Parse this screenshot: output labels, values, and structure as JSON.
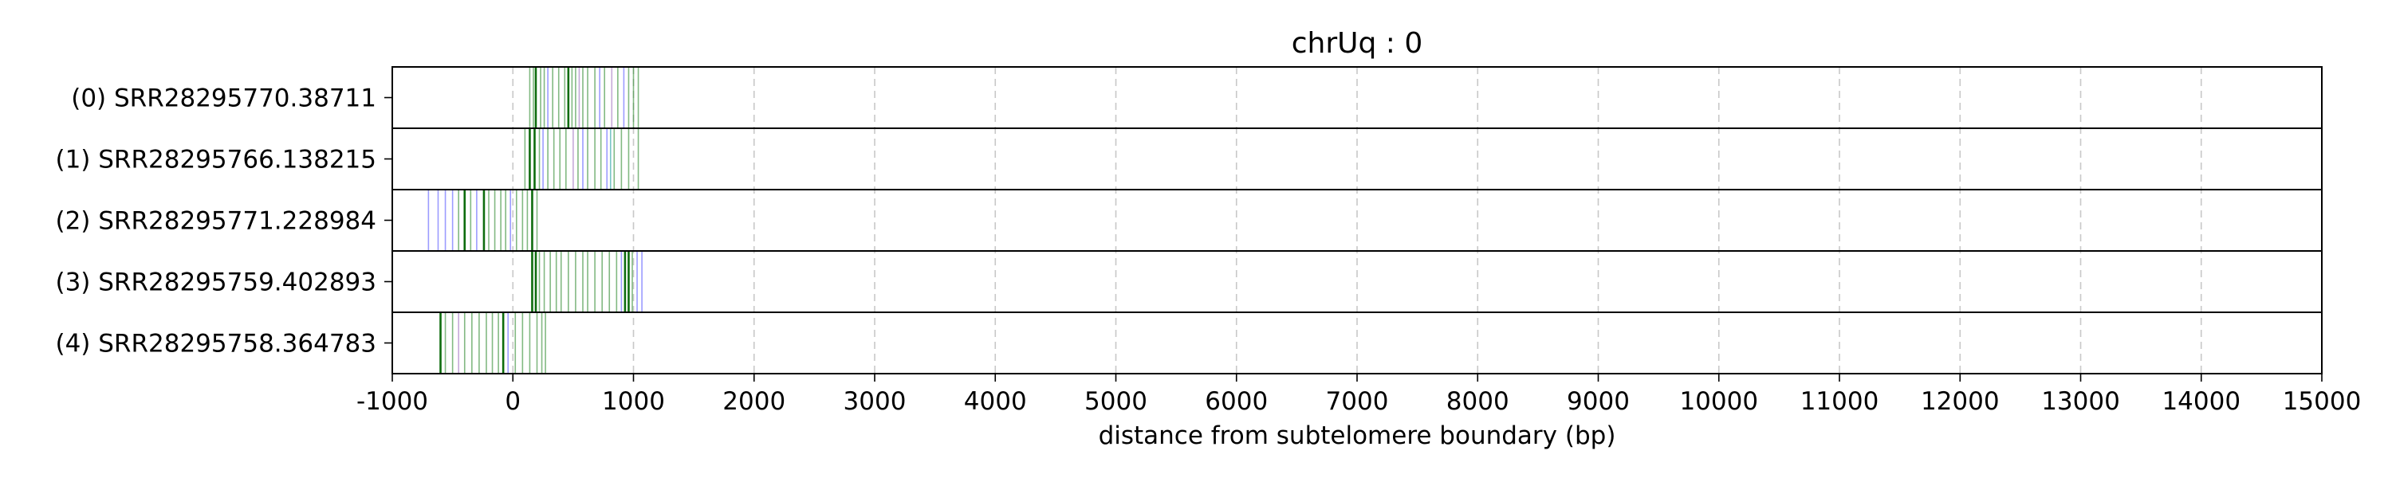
{
  "chart_data": {
    "type": "event-track",
    "title": "chrUq : 0",
    "xlabel": "distance from subtelomere boundary (bp)",
    "xlim": [
      -1000,
      15000
    ],
    "x_ticks": [
      -1000,
      0,
      1000,
      2000,
      3000,
      4000,
      5000,
      6000,
      7000,
      8000,
      9000,
      10000,
      11000,
      12000,
      13000,
      14000,
      15000
    ],
    "x_tick_labels": [
      "-1000",
      "0",
      "1000",
      "2000",
      "3000",
      "4000",
      "5000",
      "6000",
      "7000",
      "8000",
      "9000",
      "10000",
      "11000",
      "12000",
      "13000",
      "14000",
      "15000"
    ],
    "grid": "vertical dashed",
    "colors": {
      "green": "#2e8b2e",
      "dark_green": "#006400",
      "blue": "#5a5aff",
      "purple": "#a070c0"
    },
    "rows": [
      {
        "label": "(0) SRR28295770.38711",
        "events": [
          {
            "x": 140,
            "c": "green"
          },
          {
            "x": 170,
            "c": "green"
          },
          {
            "x": 190,
            "c": "dark_green"
          },
          {
            "x": 230,
            "c": "green"
          },
          {
            "x": 260,
            "c": "green"
          },
          {
            "x": 290,
            "c": "blue"
          },
          {
            "x": 330,
            "c": "green"
          },
          {
            "x": 380,
            "c": "green"
          },
          {
            "x": 430,
            "c": "green"
          },
          {
            "x": 460,
            "c": "dark_green"
          },
          {
            "x": 490,
            "c": "green"
          },
          {
            "x": 520,
            "c": "green"
          },
          {
            "x": 550,
            "c": "purple"
          },
          {
            "x": 580,
            "c": "green"
          },
          {
            "x": 620,
            "c": "green"
          },
          {
            "x": 680,
            "c": "green"
          },
          {
            "x": 720,
            "c": "blue"
          },
          {
            "x": 760,
            "c": "green"
          },
          {
            "x": 820,
            "c": "purple"
          },
          {
            "x": 870,
            "c": "green"
          },
          {
            "x": 920,
            "c": "blue"
          },
          {
            "x": 960,
            "c": "green"
          },
          {
            "x": 1000,
            "c": "green"
          },
          {
            "x": 1040,
            "c": "green"
          }
        ]
      },
      {
        "label": "(1) SRR28295766.138215",
        "events": [
          {
            "x": 100,
            "c": "green"
          },
          {
            "x": 140,
            "c": "dark_green"
          },
          {
            "x": 180,
            "c": "dark_green"
          },
          {
            "x": 220,
            "c": "green"
          },
          {
            "x": 250,
            "c": "blue"
          },
          {
            "x": 290,
            "c": "green"
          },
          {
            "x": 340,
            "c": "green"
          },
          {
            "x": 390,
            "c": "green"
          },
          {
            "x": 440,
            "c": "green"
          },
          {
            "x": 500,
            "c": "purple"
          },
          {
            "x": 540,
            "c": "green"
          },
          {
            "x": 580,
            "c": "blue"
          },
          {
            "x": 620,
            "c": "green"
          },
          {
            "x": 680,
            "c": "green"
          },
          {
            "x": 730,
            "c": "green"
          },
          {
            "x": 780,
            "c": "blue"
          },
          {
            "x": 810,
            "c": "teal"
          },
          {
            "x": 840,
            "c": "green"
          },
          {
            "x": 900,
            "c": "green"
          },
          {
            "x": 960,
            "c": "green"
          },
          {
            "x": 1040,
            "c": "green"
          }
        ]
      },
      {
        "label": "(2) SRR28295771.228984",
        "events": [
          {
            "x": -700,
            "c": "blue"
          },
          {
            "x": -620,
            "c": "blue"
          },
          {
            "x": -560,
            "c": "blue"
          },
          {
            "x": -500,
            "c": "blue"
          },
          {
            "x": -450,
            "c": "green"
          },
          {
            "x": -400,
            "c": "dark_green"
          },
          {
            "x": -350,
            "c": "green"
          },
          {
            "x": -300,
            "c": "blue"
          },
          {
            "x": -240,
            "c": "dark_green"
          },
          {
            "x": -200,
            "c": "green"
          },
          {
            "x": -150,
            "c": "green"
          },
          {
            "x": -100,
            "c": "green"
          },
          {
            "x": -60,
            "c": "green"
          },
          {
            "x": -20,
            "c": "blue"
          },
          {
            "x": 30,
            "c": "green"
          },
          {
            "x": 80,
            "c": "green"
          },
          {
            "x": 120,
            "c": "green"
          },
          {
            "x": 160,
            "c": "dark_green"
          },
          {
            "x": 200,
            "c": "green"
          }
        ]
      },
      {
        "label": "(3) SRR28295759.402893",
        "events": [
          {
            "x": 160,
            "c": "dark_green"
          },
          {
            "x": 190,
            "c": "dark_green"
          },
          {
            "x": 220,
            "c": "green"
          },
          {
            "x": 260,
            "c": "green"
          },
          {
            "x": 310,
            "c": "green"
          },
          {
            "x": 360,
            "c": "green"
          },
          {
            "x": 400,
            "c": "green"
          },
          {
            "x": 460,
            "c": "green"
          },
          {
            "x": 520,
            "c": "green"
          },
          {
            "x": 580,
            "c": "green"
          },
          {
            "x": 620,
            "c": "green"
          },
          {
            "x": 680,
            "c": "green"
          },
          {
            "x": 740,
            "c": "green"
          },
          {
            "x": 800,
            "c": "green"
          },
          {
            "x": 860,
            "c": "green"
          },
          {
            "x": 900,
            "c": "blue"
          },
          {
            "x": 930,
            "c": "dark_green"
          },
          {
            "x": 960,
            "c": "dark_green"
          },
          {
            "x": 990,
            "c": "green"
          },
          {
            "x": 1030,
            "c": "blue"
          },
          {
            "x": 1070,
            "c": "blue"
          }
        ]
      },
      {
        "label": "(4) SRR28295758.364783",
        "events": [
          {
            "x": -600,
            "c": "dark_green"
          },
          {
            "x": -560,
            "c": "green"
          },
          {
            "x": -500,
            "c": "green"
          },
          {
            "x": -450,
            "c": "purple"
          },
          {
            "x": -400,
            "c": "green"
          },
          {
            "x": -340,
            "c": "green"
          },
          {
            "x": -280,
            "c": "green"
          },
          {
            "x": -220,
            "c": "green"
          },
          {
            "x": -170,
            "c": "green"
          },
          {
            "x": -120,
            "c": "green"
          },
          {
            "x": -80,
            "c": "dark_green"
          },
          {
            "x": -40,
            "c": "blue"
          },
          {
            "x": 20,
            "c": "green"
          },
          {
            "x": 80,
            "c": "green"
          },
          {
            "x": 140,
            "c": "green"
          },
          {
            "x": 200,
            "c": "green"
          },
          {
            "x": 240,
            "c": "green"
          },
          {
            "x": 270,
            "c": "green"
          }
        ]
      }
    ]
  }
}
